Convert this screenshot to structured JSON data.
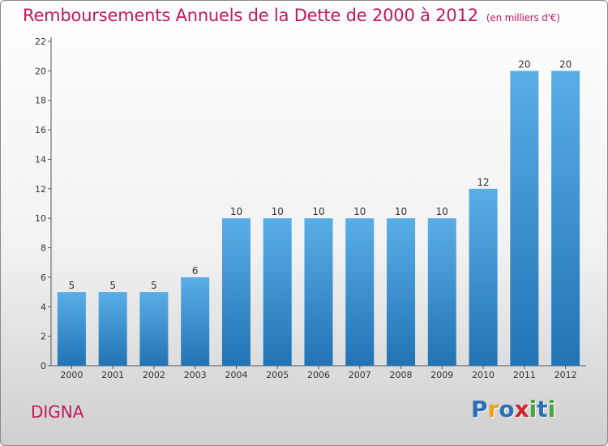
{
  "title": "Remboursements Annuels de la Dette de 2000 à 2012",
  "subtitle": "(en milliers d'€)",
  "commune": "DIGNA",
  "logo": {
    "text": "Proxiti",
    "letters": [
      {
        "ch": "P",
        "color": "#2b6fb7"
      },
      {
        "ch": "r",
        "color": "#e8a21c"
      },
      {
        "ch": "o",
        "color": "#2b6fb7"
      },
      {
        "ch": "x",
        "color": "#d2232a"
      },
      {
        "ch": "i",
        "color": "#4aa53b"
      },
      {
        "ch": "t",
        "color": "#2b6fb7"
      },
      {
        "ch": "i",
        "color": "#4aa53b"
      }
    ]
  },
  "colors": {
    "bar_top": "#5aaee6",
    "bar_bottom": "#2173b5",
    "title": "#c2185b"
  },
  "chart_data": {
    "type": "bar",
    "title": "Remboursements Annuels de la Dette de 2000 à 2012",
    "subtitle": "(en milliers d'€)",
    "categories": [
      "2000",
      "2001",
      "2002",
      "2003",
      "2004",
      "2005",
      "2006",
      "2007",
      "2008",
      "2009",
      "2010",
      "2011",
      "2012"
    ],
    "values": [
      5,
      5,
      5,
      6,
      10,
      10,
      10,
      10,
      10,
      10,
      12,
      20,
      20
    ],
    "ylim": [
      0,
      22
    ],
    "yticks": [
      0,
      2,
      4,
      6,
      8,
      10,
      12,
      14,
      16,
      18,
      20,
      22
    ],
    "grid": false,
    "data_labels": true
  }
}
